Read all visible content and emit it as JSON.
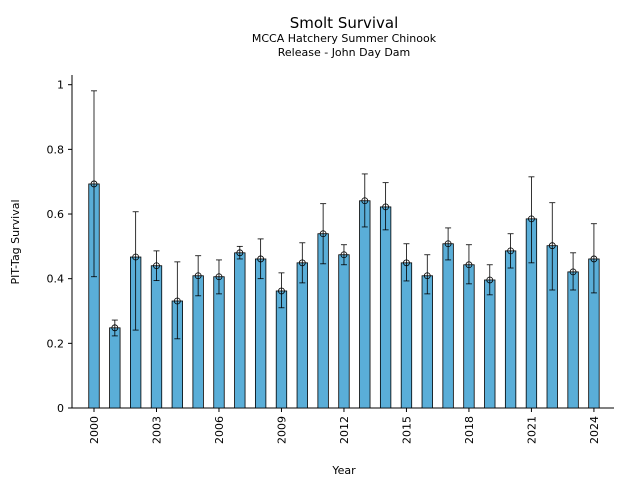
{
  "chart_data": {
    "type": "bar",
    "title": "Smolt Survival",
    "subtitle": [
      "MCCA Hatchery Summer Chinook",
      "Release - John Day Dam"
    ],
    "xlabel": "Year",
    "ylabel": "PIT-Tag Survival",
    "categories": [
      "2000",
      null,
      null,
      "2003",
      null,
      null,
      "2006",
      null,
      null,
      "2009",
      null,
      null,
      "2012",
      null,
      null,
      "2015",
      null,
      null,
      "2018",
      null,
      null,
      "2021",
      null,
      null,
      "2024"
    ],
    "values": [
      0.693,
      0.248,
      0.467,
      0.44,
      0.331,
      0.409,
      0.406,
      0.48,
      0.461,
      0.362,
      0.449,
      0.539,
      0.474,
      0.641,
      0.622,
      0.449,
      0.409,
      0.508,
      0.443,
      0.396,
      0.486,
      0.585,
      0.502,
      0.421,
      0.461
    ],
    "lower": [
      0.406,
      0.223,
      0.241,
      0.394,
      0.214,
      0.347,
      0.353,
      0.461,
      0.4,
      0.31,
      0.387,
      0.446,
      0.443,
      0.56,
      0.551,
      0.393,
      0.353,
      0.458,
      0.384,
      0.35,
      0.433,
      0.449,
      0.365,
      0.365,
      0.356
    ],
    "upper": [
      0.981,
      0.272,
      0.607,
      0.486,
      0.452,
      0.471,
      0.458,
      0.5,
      0.523,
      0.418,
      0.511,
      0.632,
      0.505,
      0.724,
      0.697,
      0.508,
      0.474,
      0.557,
      0.505,
      0.443,
      0.539,
      0.715,
      0.635,
      0.48,
      0.57
    ],
    "color": "#5aaed8",
    "ylim": [
      0,
      1.03
    ],
    "yticks": [
      0,
      0.2,
      0.4,
      0.6,
      0.8,
      1
    ]
  }
}
